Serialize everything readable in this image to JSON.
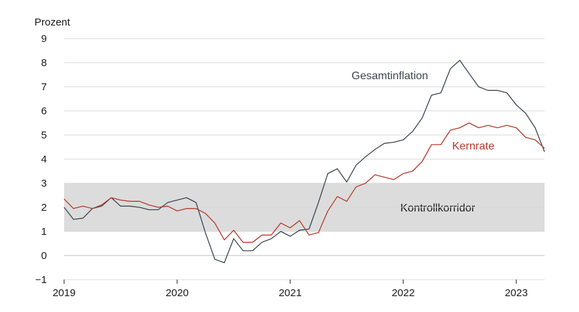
{
  "chart_data": {
    "type": "line",
    "ylabel": "Prozent",
    "ylim": [
      -1,
      9
    ],
    "yticks": [
      "9",
      "8",
      "7",
      "6",
      "5",
      "4",
      "3",
      "2",
      "1",
      "0",
      "−1"
    ],
    "xlim": [
      2019.0,
      2023.25
    ],
    "xticks": [
      "2019",
      "2020",
      "2021",
      "2022",
      "2023"
    ],
    "grid": true,
    "band": {
      "label": "Kontrollkorridor",
      "range": [
        1,
        3
      ],
      "color": "#dcdcdc"
    },
    "series": [
      {
        "name": "Gesamtinflation",
        "color": "#3b4650",
        "x": [
          2019.0,
          2019.083,
          2019.167,
          2019.25,
          2019.333,
          2019.417,
          2019.5,
          2019.583,
          2019.667,
          2019.75,
          2019.833,
          2019.917,
          2020.0,
          2020.083,
          2020.167,
          2020.25,
          2020.333,
          2020.417,
          2020.5,
          2020.583,
          2020.667,
          2020.75,
          2020.833,
          2020.917,
          2021.0,
          2021.083,
          2021.167,
          2021.25,
          2021.333,
          2021.417,
          2021.5,
          2021.583,
          2021.667,
          2021.75,
          2021.833,
          2021.917,
          2022.0,
          2022.083,
          2022.167,
          2022.25,
          2022.333,
          2022.417,
          2022.5,
          2022.583,
          2022.667,
          2022.75,
          2022.833,
          2022.917,
          2023.0,
          2023.083,
          2023.167,
          2023.25
        ],
        "y": [
          2.0,
          1.5,
          1.55,
          1.95,
          2.05,
          2.4,
          2.05,
          2.05,
          2.0,
          1.9,
          1.9,
          2.2,
          2.3,
          2.4,
          2.2,
          0.95,
          -0.15,
          -0.3,
          0.7,
          0.2,
          0.2,
          0.55,
          0.7,
          1.0,
          0.8,
          1.05,
          1.1,
          2.2,
          3.4,
          3.6,
          3.05,
          3.75,
          4.1,
          4.4,
          4.65,
          4.7,
          4.8,
          5.15,
          5.7,
          6.65,
          6.75,
          7.75,
          8.1,
          7.55,
          7.0,
          6.85,
          6.85,
          6.75,
          6.25,
          5.9,
          5.3,
          4.3
        ]
      },
      {
        "name": "Kernrate",
        "color": "#b5392a",
        "x": [
          2019.0,
          2019.083,
          2019.167,
          2019.25,
          2019.333,
          2019.417,
          2019.5,
          2019.583,
          2019.667,
          2019.75,
          2019.833,
          2019.917,
          2020.0,
          2020.083,
          2020.167,
          2020.25,
          2020.333,
          2020.417,
          2020.5,
          2020.583,
          2020.667,
          2020.75,
          2020.833,
          2020.917,
          2021.0,
          2021.083,
          2021.167,
          2021.25,
          2021.333,
          2021.417,
          2021.5,
          2021.583,
          2021.667,
          2021.75,
          2021.833,
          2021.917,
          2022.0,
          2022.083,
          2022.167,
          2022.25,
          2022.333,
          2022.417,
          2022.5,
          2022.583,
          2022.667,
          2022.75,
          2022.833,
          2022.917,
          2023.0,
          2023.083,
          2023.167,
          2023.25
        ],
        "y": [
          2.35,
          1.95,
          2.05,
          1.95,
          2.1,
          2.4,
          2.3,
          2.25,
          2.25,
          2.1,
          2.0,
          2.05,
          1.85,
          1.95,
          1.95,
          1.75,
          1.35,
          0.65,
          1.05,
          0.55,
          0.55,
          0.85,
          0.85,
          1.35,
          1.15,
          1.45,
          0.85,
          0.95,
          1.85,
          2.45,
          2.25,
          2.85,
          3.0,
          3.35,
          3.25,
          3.15,
          3.4,
          3.5,
          3.9,
          4.6,
          4.6,
          5.2,
          5.3,
          5.5,
          5.3,
          5.4,
          5.3,
          5.4,
          5.3,
          4.9,
          4.8,
          4.45
        ]
      }
    ]
  }
}
